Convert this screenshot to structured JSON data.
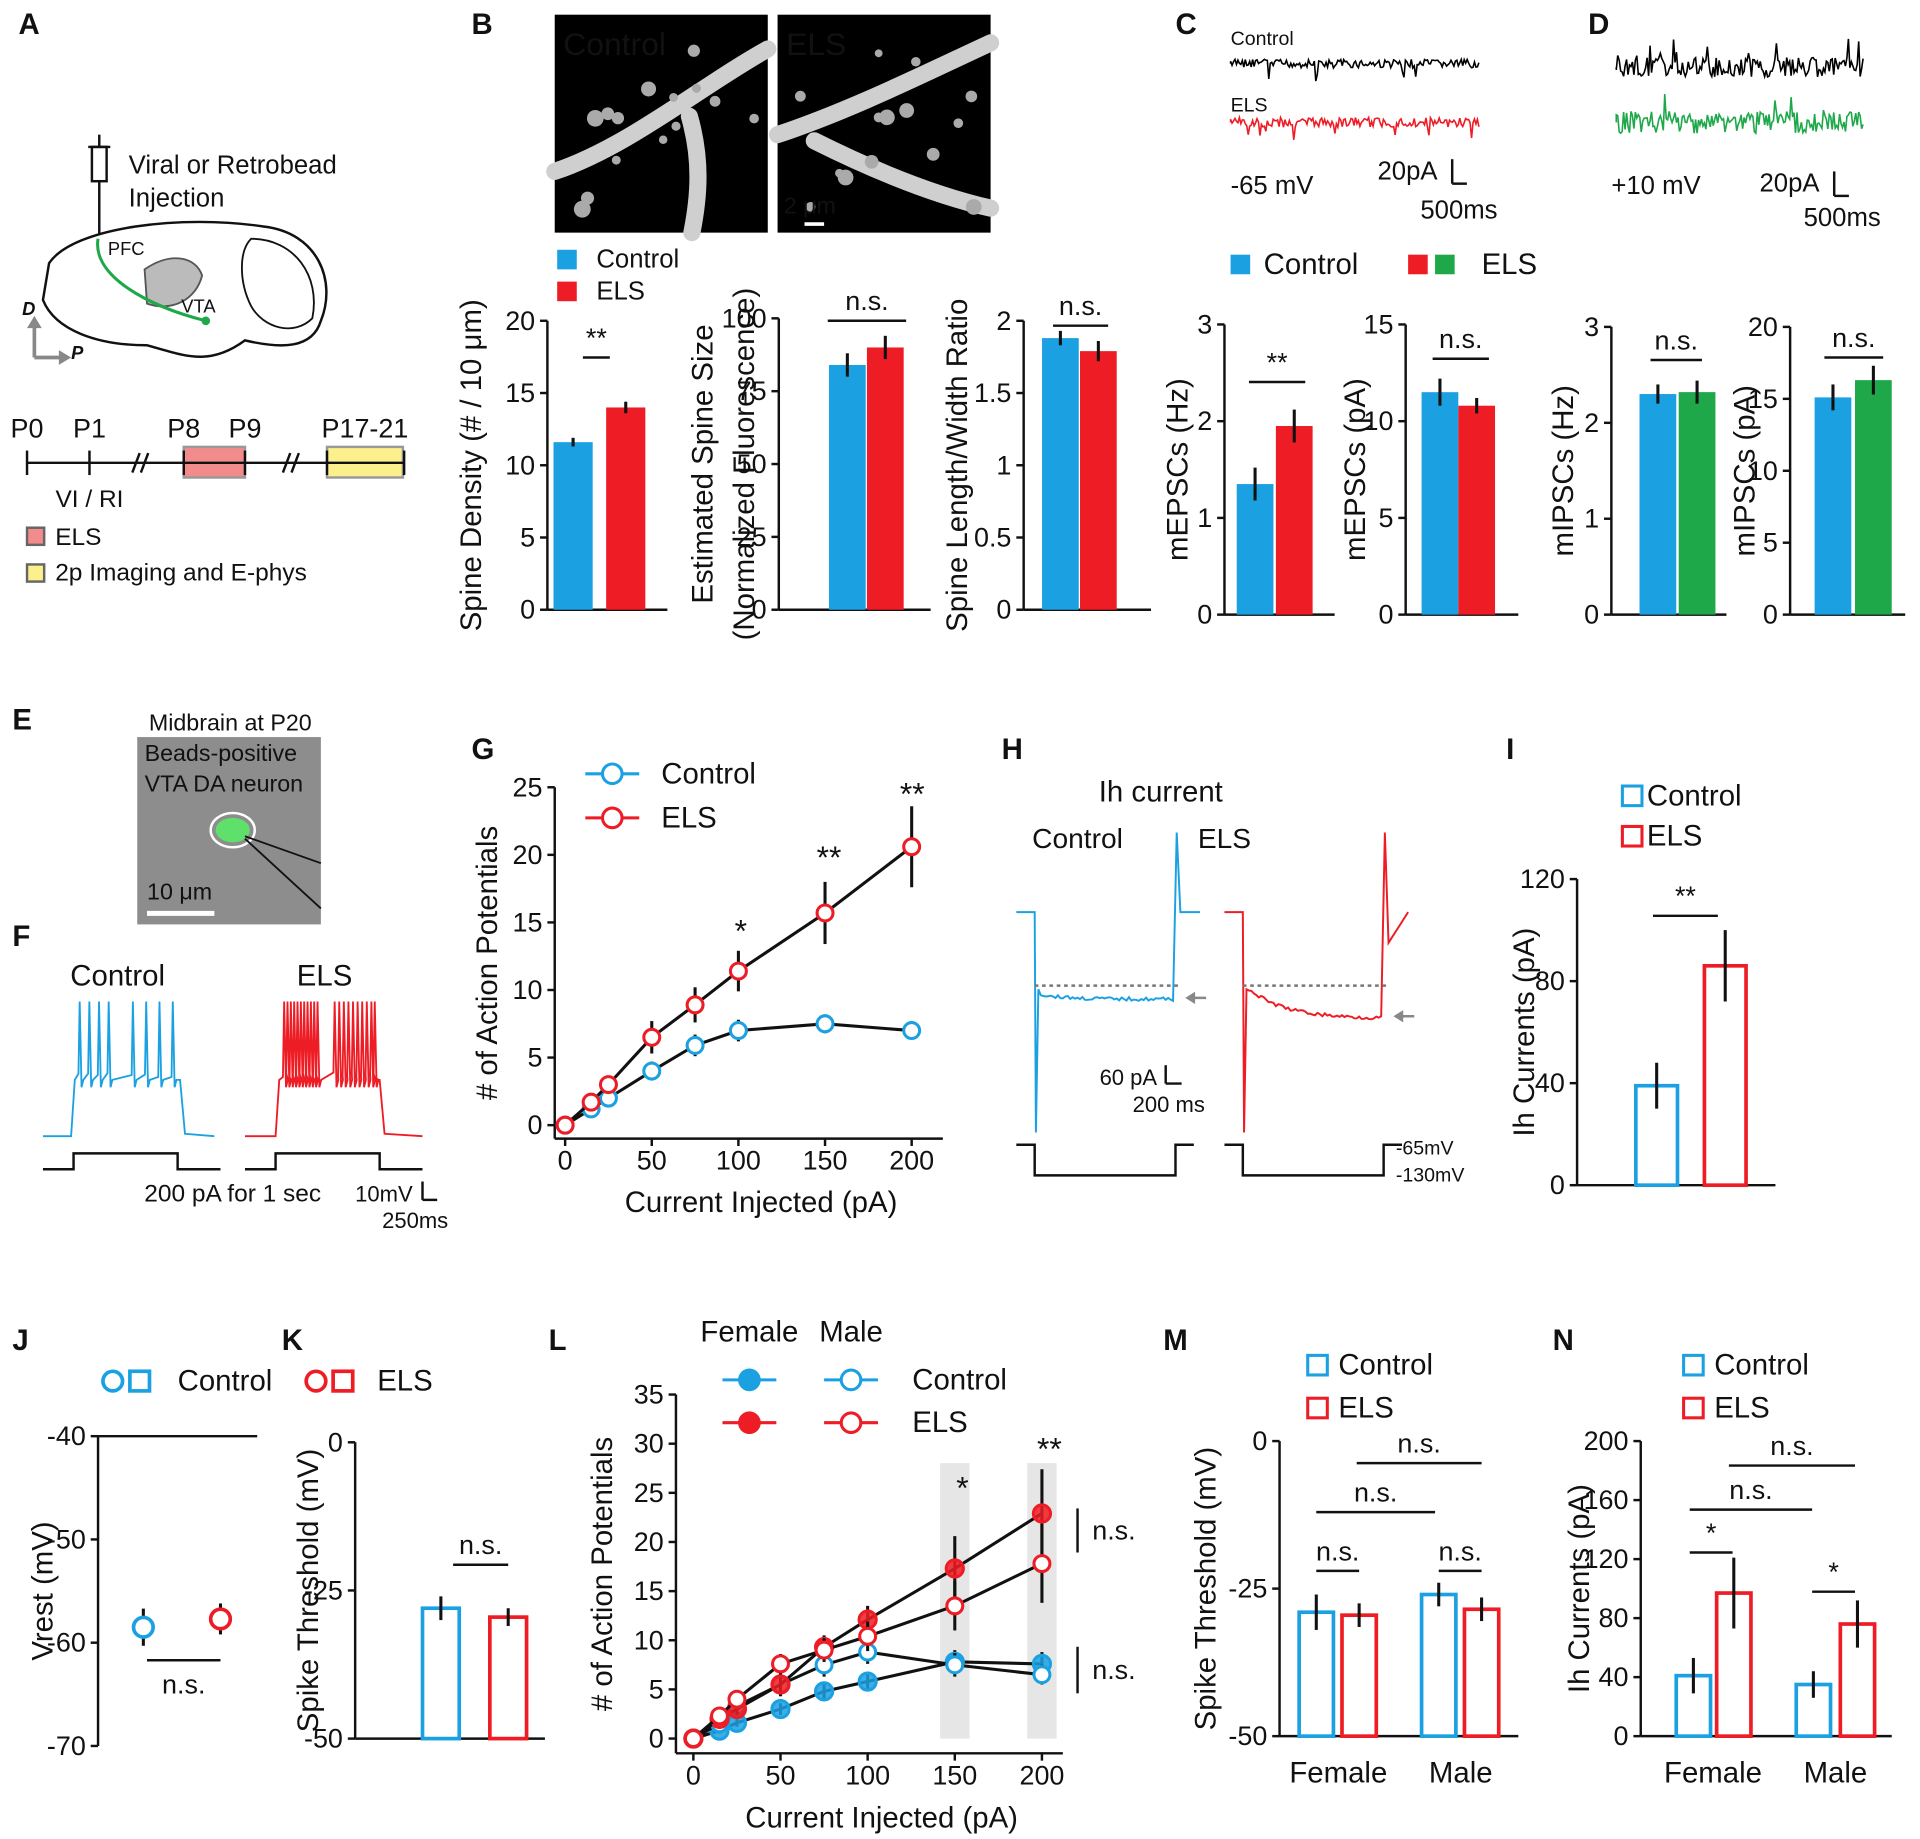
{
  "panel_labels": [
    "A",
    "B",
    "C",
    "D",
    "E",
    "F",
    "G",
    "H",
    "I",
    "J",
    "K",
    "L",
    "M",
    "N"
  ],
  "panel_a": {
    "injection": [
      "Viral or Retrobead",
      "Injection"
    ],
    "regions": [
      "PFC",
      "VTA"
    ],
    "axes": [
      "D",
      "P"
    ],
    "timeline": [
      "P0",
      "P1",
      "P8",
      "P9",
      "P17-21"
    ],
    "timeline_note": "VI / RI",
    "key": [
      "ELS",
      "2p Imaging and E-phys"
    ]
  },
  "panel_b_images": {
    "labels": [
      "Control",
      "ELS"
    ],
    "scale": "2 μm"
  },
  "panel_c_traces": {
    "labels": [
      "Control",
      "ELS"
    ],
    "holding": "-65 mV",
    "scale_y": "20pA",
    "scale_x": "500ms"
  },
  "panel_d_traces": {
    "holding": "+10 mV",
    "scale_y": "20pA",
    "scale_x": "500ms"
  },
  "panel_e_image": {
    "lines": [
      "Midbrain at P20",
      "Beads-positive",
      "VTA DA neuron"
    ],
    "scale": "10 μm"
  },
  "panel_f_traces": {
    "labels": [
      "Control",
      "ELS"
    ],
    "stimulus": "200 pA for 1 sec",
    "scale_y": "10mV",
    "scale_x": "250ms"
  },
  "panel_h_traces": {
    "title": "Ih current",
    "labels": [
      "Control",
      "ELS"
    ],
    "scale_y": "60 pA",
    "scale_x": "200 ms",
    "voltages": [
      "-65mV",
      "-130mV"
    ]
  },
  "chart_data": [
    {
      "type": "bar",
      "ylabel": "Spine Density (# / 10 μm)",
      "series": [
        {
          "name": "Control",
          "color": "#1ba1e2",
          "values": [
            11.6
          ],
          "errors": [
            0.3
          ]
        },
        {
          "name": "ELS",
          "color": "#ee1c25",
          "values": [
            14
          ],
          "errors": [
            0.4
          ]
        }
      ],
      "ylim": [
        0,
        20
      ],
      "yticks": [
        0,
        5,
        10,
        15,
        20
      ],
      "significance": [
        "**"
      ]
    },
    {
      "type": "bar",
      "ylabel": [
        "Estimated Spine Size",
        "(Normalized Fluorescence)"
      ],
      "series": [
        {
          "color": "#1ba1e2",
          "values": [
            84
          ],
          "errors": [
            4
          ]
        },
        {
          "color": "#ee1c25",
          "values": [
            90
          ],
          "errors": [
            4
          ]
        }
      ],
      "ylim": [
        0,
        100
      ],
      "yticks": [
        0,
        25,
        50,
        75,
        100
      ],
      "significance": [
        "n.s."
      ]
    },
    {
      "type": "bar",
      "ylabel": "Spine Length/Width Ratio",
      "series": [
        {
          "color": "#1ba1e2",
          "values": [
            1.88
          ],
          "errors": [
            0.05
          ]
        },
        {
          "color": "#ee1c25",
          "values": [
            1.79
          ],
          "errors": [
            0.07
          ]
        }
      ],
      "ylim": [
        0,
        2
      ],
      "yticks": [
        0,
        0.5,
        1,
        1.5,
        2
      ],
      "significance": [
        "n.s."
      ]
    },
    {
      "type": "bar",
      "ylabel": "mEPSCs (Hz)",
      "series": [
        {
          "name": "Control",
          "color": "#1ba1e2",
          "values": [
            1.35
          ],
          "errors": [
            0.17
          ]
        },
        {
          "name": "ELS",
          "color": "#ee1c25",
          "values": [
            1.95
          ],
          "errors": [
            0.17
          ]
        }
      ],
      "ylim": [
        0,
        3
      ],
      "yticks": [
        0,
        1,
        2,
        3
      ],
      "significance": [
        "**"
      ]
    },
    {
      "type": "bar",
      "ylabel": "mEPSCs (pA)",
      "series": [
        {
          "color": "#1ba1e2",
          "values": [
            11.5
          ],
          "errors": [
            0.7
          ]
        },
        {
          "color": "#ee1c25",
          "values": [
            10.8
          ],
          "errors": [
            0.4
          ]
        }
      ],
      "ylim": [
        0,
        15
      ],
      "yticks": [
        0,
        5,
        10,
        15
      ],
      "significance": [
        "n.s."
      ]
    },
    {
      "type": "bar",
      "ylabel": "mIPSCs (Hz)",
      "series": [
        {
          "color": "#1ba1e2",
          "values": [
            2.3
          ],
          "errors": [
            0.1
          ]
        },
        {
          "color": "#1fa84a",
          "values": [
            2.32
          ],
          "errors": [
            0.12
          ]
        }
      ],
      "ylim": [
        0,
        3
      ],
      "yticks": [
        0,
        1,
        2,
        3
      ],
      "significance": [
        "n.s."
      ]
    },
    {
      "type": "bar",
      "ylabel": "mIPSCs (pA)",
      "series": [
        {
          "color": "#1ba1e2",
          "values": [
            15.1
          ],
          "errors": [
            0.9
          ]
        },
        {
          "color": "#1fa84a",
          "values": [
            16.3
          ],
          "errors": [
            1
          ]
        }
      ],
      "ylim": [
        0,
        20
      ],
      "yticks": [
        0,
        5,
        10,
        15,
        20
      ],
      "significance": [
        "n.s."
      ]
    },
    {
      "type": "line",
      "xlabel": "Current Injected (pA)",
      "ylabel": "# of Action Potentials",
      "x": [
        0,
        15,
        25,
        50,
        75,
        100,
        150,
        200
      ],
      "series": [
        {
          "name": "Control",
          "color": "#1ba1e2",
          "marker": "open",
          "values": [
            0,
            1.2,
            2,
            4,
            5.9,
            7,
            7.5,
            7
          ],
          "errors": [
            0,
            0.3,
            0.5,
            0.7,
            0.8,
            0.8,
            0.7,
            0.6
          ]
        },
        {
          "name": "ELS",
          "color": "#ee1c25",
          "marker": "open",
          "values": [
            0,
            1.7,
            3,
            6.5,
            8.9,
            11.4,
            15.7,
            20.6
          ],
          "errors": [
            0,
            0.4,
            0.6,
            1.2,
            1.3,
            1.5,
            2.3,
            3
          ]
        }
      ],
      "xlim": [
        -6,
        218
      ],
      "xticks": [
        0,
        50,
        100,
        150,
        200
      ],
      "ylim": [
        -1,
        25
      ],
      "yticks": [
        0,
        5,
        10,
        15,
        20,
        25
      ],
      "significance": [
        "*",
        "**",
        "**"
      ]
    },
    {
      "type": "bar",
      "bar_style": "outline",
      "ylabel": "Ih Currents (pA)",
      "series": [
        {
          "name": "Control",
          "color": "#1ba1e2",
          "values": [
            39
          ],
          "errors": [
            9
          ]
        },
        {
          "name": "ELS",
          "color": "#ee1c25",
          "values": [
            86
          ],
          "errors": [
            14
          ]
        }
      ],
      "ylim": [
        0,
        120
      ],
      "yticks": [
        0,
        40,
        80,
        120
      ],
      "significance": [
        "**"
      ]
    },
    {
      "type": "dot",
      "ylabel": "Vrest (mV)",
      "series": [
        {
          "name": "Control",
          "color": "#1ba1e2",
          "values": [
            -58.5
          ],
          "errors": [
            1.8
          ]
        },
        {
          "name": "ELS",
          "color": "#ee1c25",
          "values": [
            -57.7
          ],
          "errors": [
            1.5
          ]
        }
      ],
      "ylim": [
        -70,
        -40
      ],
      "yticks": [
        -70,
        -60,
        -50,
        -40
      ],
      "significance": [
        "n.s."
      ]
    },
    {
      "type": "bar",
      "bar_style": "outline",
      "ylabel": "Spike Threshold (mV)",
      "series": [
        {
          "color": "#1ba1e2",
          "values": [
            -28
          ],
          "errors": [
            2
          ]
        },
        {
          "color": "#ee1c25",
          "values": [
            -29.5
          ],
          "errors": [
            1.5
          ]
        }
      ],
      "ylim": [
        -50,
        0
      ],
      "yticks": [
        -50,
        -25,
        0
      ],
      "significance": [
        "n.s."
      ]
    },
    {
      "type": "line",
      "xlabel": "Current Injected (pA)",
      "ylabel": "# of Action Potentials",
      "legend_headers": [
        "Female",
        "Male"
      ],
      "legend_names": [
        "Control",
        "ELS"
      ],
      "x": [
        0,
        15,
        25,
        50,
        75,
        100,
        150,
        200
      ],
      "series": [
        {
          "color": "#1ba1e2",
          "marker": "filled",
          "values": [
            0,
            0.8,
            1.6,
            3,
            4.8,
            5.8,
            7.8,
            7.6
          ],
          "errors": [
            0,
            0.3,
            0.4,
            0.6,
            0.8,
            0.8,
            1.2,
            1.2
          ]
        },
        {
          "color": "#1ba1e2",
          "marker": "open",
          "values": [
            0,
            1.5,
            3.3,
            5.5,
            7.5,
            8.8,
            7.5,
            6.5
          ],
          "errors": [
            0,
            0.4,
            0.6,
            1,
            1.2,
            1.2,
            1.2,
            1
          ]
        },
        {
          "color": "#ee1c25",
          "marker": "filled",
          "values": [
            0,
            2,
            3,
            5.5,
            9.3,
            12.1,
            17.3,
            22.9
          ],
          "errors": [
            0,
            0.4,
            0.6,
            1.2,
            1.2,
            1.4,
            3.3,
            4.5
          ]
        },
        {
          "color": "#ee1c25",
          "marker": "open",
          "values": [
            0,
            2.3,
            4,
            7.6,
            9,
            10.4,
            13.5,
            17.8
          ],
          "errors": [
            0,
            0.4,
            0.6,
            1,
            1.2,
            1.5,
            2.5,
            4
          ]
        }
      ],
      "xlim": [
        -10,
        212
      ],
      "xticks": [
        0,
        50,
        100,
        150,
        200
      ],
      "ylim": [
        -1.5,
        35
      ],
      "yticks": [
        0,
        5,
        10,
        15,
        20,
        25,
        30,
        35
      ],
      "significance": [
        "*",
        "**",
        "n.s.",
        "n.s."
      ]
    },
    {
      "type": "bar",
      "bar_style": "outline",
      "ylabel": "Spike Threshold (mV)",
      "categories": [
        "Female",
        "Male"
      ],
      "series": [
        {
          "name": "Control",
          "color": "#1ba1e2",
          "values": [
            -29,
            -26
          ],
          "errors": [
            3,
            2
          ]
        },
        {
          "name": "ELS",
          "color": "#ee1c25",
          "values": [
            -29.5,
            -28.5
          ],
          "errors": [
            2,
            2
          ]
        }
      ],
      "ylim": [
        -50,
        0
      ],
      "yticks": [
        -50,
        -25,
        0
      ],
      "significance": [
        "n.s.",
        "n.s.",
        "n.s.",
        "n.s."
      ]
    },
    {
      "type": "bar",
      "bar_style": "outline",
      "ylabel": "Ih Currents (pA)",
      "categories": [
        "Female",
        "Male"
      ],
      "series": [
        {
          "name": "Control",
          "color": "#1ba1e2",
          "values": [
            41,
            35
          ],
          "errors": [
            12,
            9
          ]
        },
        {
          "name": "ELS",
          "color": "#ee1c25",
          "values": [
            97,
            76
          ],
          "errors": [
            24,
            16
          ]
        }
      ],
      "ylim": [
        0,
        200
      ],
      "yticks": [
        0,
        40,
        80,
        120,
        160,
        200
      ],
      "significance": [
        "*",
        "*",
        "n.s.",
        "n.s."
      ]
    }
  ]
}
